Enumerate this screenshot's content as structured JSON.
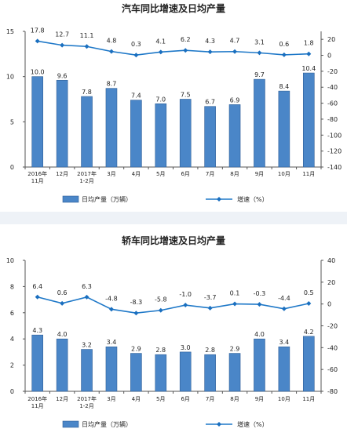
{
  "colors": {
    "bar": "#4a86c8",
    "bar_edge": "#2f5f97",
    "line": "#1e78c8",
    "marker": "#1a6fbf",
    "axis": "#555555",
    "text": "#222222",
    "divider": "#eef2f7"
  },
  "chart_data": [
    {
      "type": "bar",
      "title": "汽车同比增速及日均产量",
      "categories": [
        "2016年\n11月",
        "12月",
        "2017年\n1-2月",
        "3月",
        "4月",
        "5月",
        "6月",
        "7月",
        "8月",
        "9月",
        "10月",
        "11月"
      ],
      "series": [
        {
          "name": "日均产量（万辆）",
          "type": "bar",
          "axis": "left",
          "values": [
            10.0,
            9.6,
            7.8,
            8.7,
            7.4,
            7.0,
            7.5,
            6.7,
            6.9,
            9.7,
            8.4,
            10.4
          ]
        },
        {
          "name": "增速（%）",
          "type": "line",
          "axis": "right",
          "values": [
            17.8,
            12.7,
            11.1,
            4.8,
            0.3,
            4.1,
            6.2,
            4.3,
            4.7,
            3.1,
            0.6,
            1.8
          ]
        }
      ],
      "y_left": {
        "min": 0,
        "max": 15,
        "ticks": [
          0,
          5,
          10,
          15
        ]
      },
      "y_right": {
        "min": -140,
        "max": 30,
        "ticks": [
          20,
          0,
          -20,
          -40,
          -60,
          -80,
          -100,
          -120,
          -140
        ]
      },
      "bar_labels": [
        "10.0",
        "9.6",
        "7.8",
        "8.7",
        "7.4",
        "7.0",
        "7.5",
        "6.7",
        "6.9",
        "9.7",
        "8.4",
        "10.4"
      ],
      "line_labels": [
        "17.8",
        "12.7",
        "11.1",
        "4.8",
        "0.3",
        "4.1",
        "6.2",
        "4.3",
        "4.7",
        "3.1",
        "0.6",
        "1.8"
      ],
      "legend_position": "bottom"
    },
    {
      "type": "bar",
      "title": "轿车同比增速及日均产量",
      "categories": [
        "2016年\n11月",
        "12月",
        "2017年\n1-2月",
        "3月",
        "4月",
        "5月",
        "6月",
        "7月",
        "8月",
        "9月",
        "10月",
        "11月"
      ],
      "series": [
        {
          "name": "日均产量（万辆）",
          "type": "bar",
          "axis": "left",
          "values": [
            4.3,
            4.0,
            3.2,
            3.4,
            2.9,
            2.8,
            3.0,
            2.8,
            2.9,
            4.0,
            3.4,
            4.2
          ]
        },
        {
          "name": "增速（%）",
          "type": "line",
          "axis": "right",
          "values": [
            6.4,
            0.6,
            6.3,
            -4.8,
            -8.3,
            -5.8,
            -1.0,
            -3.7,
            0.1,
            -0.3,
            -4.4,
            0.5
          ]
        }
      ],
      "y_left": {
        "min": 0,
        "max": 10,
        "ticks": [
          0,
          2,
          4,
          6,
          8,
          10
        ]
      },
      "y_right": {
        "min": -80,
        "max": 40,
        "ticks": [
          40,
          20,
          0,
          -20,
          -40,
          -60,
          -80
        ]
      },
      "bar_labels": [
        "4.3",
        "4.0",
        "3.2",
        "3.4",
        "2.9",
        "2.8",
        "3.0",
        "2.8",
        "2.9",
        "4.0",
        "3.4",
        "4.2"
      ],
      "line_labels": [
        "6.4",
        "0.6",
        "6.3",
        "-4.8",
        "-8.3",
        "-5.8",
        "-1.0",
        "-3.7",
        "0.1",
        "-0.3",
        "-4.4",
        "0.5"
      ],
      "legend_position": "bottom"
    }
  ]
}
